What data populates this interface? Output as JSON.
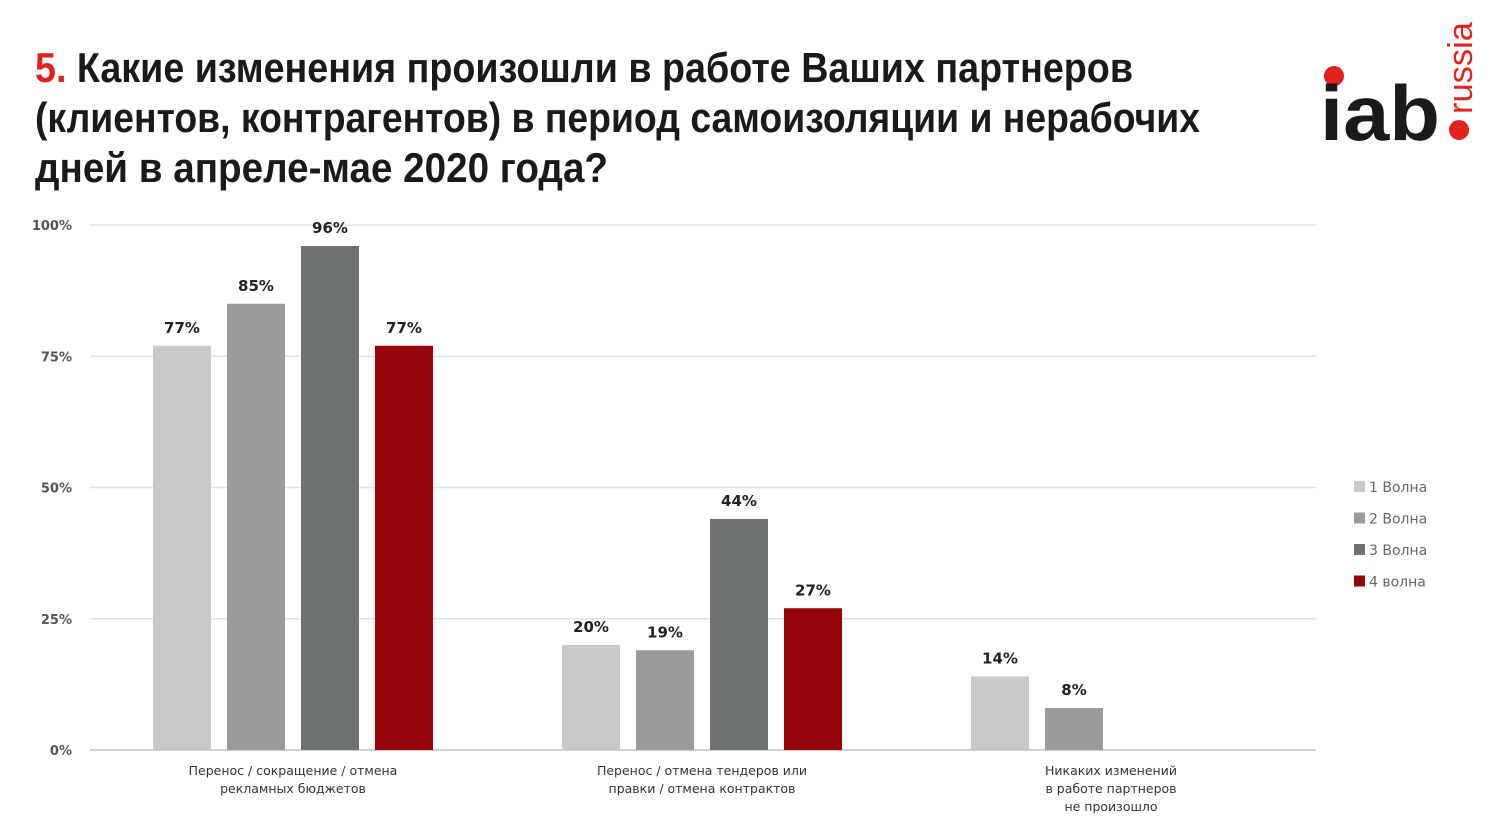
{
  "title": {
    "number": "5.",
    "lines": [
      "Какие изменения произошли в работе Ваших партнеров",
      "(клиентов, контрагентов) в период самоизоляции и нерабочих",
      "дней в апреле-мае 2020 года?"
    ]
  },
  "logo": {
    "main": "iab",
    "sub": "russia"
  },
  "colors": {
    "accent": "#e0231f",
    "title": "#1a1a1a"
  },
  "chart_data": {
    "type": "bar",
    "title": "Какие изменения произошли в работе Ваших партнеров (клиентов, контрагентов) в период самоизоляции и нерабочих дней в апреле-мае 2020 года?",
    "categories": [
      [
        "Перенос / сокращение / отмена",
        "рекламных бюджетов"
      ],
      [
        "Перенос / отмена тендеров или",
        "правки / отмена контрактов"
      ],
      [
        "Никаких изменений",
        "в работе партнеров",
        "не произошло"
      ]
    ],
    "series": [
      {
        "name": "1 Волна",
        "color": "#c9c9c9",
        "values": [
          77,
          20,
          14
        ],
        "labels": [
          "77%",
          "20%",
          "14%"
        ]
      },
      {
        "name": "2 Волна",
        "color": "#9b9b9b",
        "values": [
          85,
          19,
          8
        ],
        "labels": [
          "85%",
          "19%",
          "8%"
        ]
      },
      {
        "name": "3 Волна",
        "color": "#6d7370",
        "values": [
          96,
          44,
          null
        ],
        "labels": [
          "96%",
          "44%",
          null
        ]
      },
      {
        "name": "4 волна",
        "color": "#960608",
        "values": [
          77,
          27,
          null
        ],
        "labels": [
          "77%",
          "27%",
          null
        ]
      }
    ],
    "yticks": [
      0,
      25,
      50,
      75,
      100
    ],
    "ytick_labels": [
      "0%",
      "25%",
      "50%",
      "75%",
      "100%"
    ],
    "ylim": [
      0,
      100
    ],
    "grid": true,
    "legend": "right",
    "xlabel": "",
    "ylabel": ""
  }
}
